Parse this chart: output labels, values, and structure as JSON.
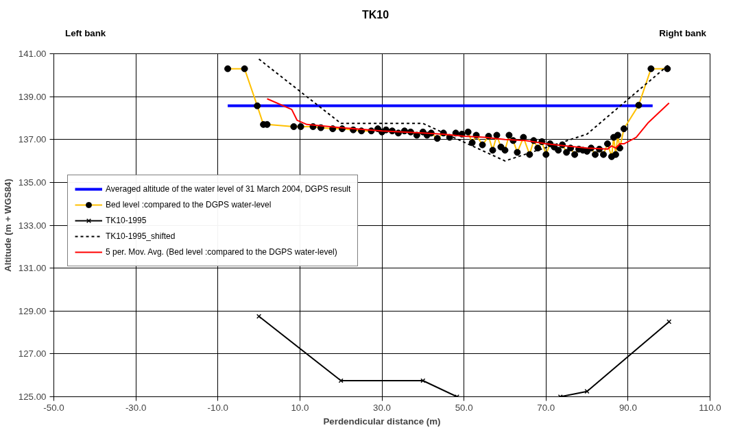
{
  "chart_data": {
    "type": "line",
    "title": "TK10",
    "xlabel": "Perdendicular distance (m)",
    "ylabel": "Altitude (m + WGS84)",
    "annotations": [
      "Left bank",
      "Right bank"
    ],
    "xlim": [
      -50,
      110
    ],
    "ylim": [
      125,
      141
    ],
    "xticks": [
      {
        "value": -50,
        "label": "-50.0"
      },
      {
        "value": -30,
        "label": "-30.0"
      },
      {
        "value": -10,
        "label": "-10.0"
      },
      {
        "value": 10,
        "label": "10.0"
      },
      {
        "value": 30,
        "label": "30.0"
      },
      {
        "value": 50,
        "label": "50.0"
      },
      {
        "value": 70,
        "label": "70.0"
      },
      {
        "value": 90,
        "label": "90.0"
      },
      {
        "value": 110,
        "label": "110.0"
      }
    ],
    "yticks": [
      {
        "value": 125,
        "label": "125.00"
      },
      {
        "value": 127,
        "label": "127.00"
      },
      {
        "value": 129,
        "label": "129.00"
      },
      {
        "value": 131,
        "label": "131.00"
      },
      {
        "value": 133,
        "label": "133.00"
      },
      {
        "value": 135,
        "label": "135.00"
      },
      {
        "value": 137,
        "label": "137.00"
      },
      {
        "value": 139,
        "label": "139.00"
      },
      {
        "value": 141,
        "label": "141.00"
      }
    ],
    "grid": true,
    "legend": "left",
    "series": [
      {
        "name": "Averaged altitude of the water level of 31 March 2004, DGPS result",
        "color": "#0000ff",
        "x": [
          -7.6,
          96.0
        ],
        "values": [
          138.57,
          138.57
        ]
      },
      {
        "name": "Bed level :compared to the DGPS water-level",
        "color": "#ffc000",
        "marker": "circle",
        "x": [
          -7.6,
          -3.5,
          -0.4,
          1.1,
          2.0,
          8.5,
          10.2,
          13.2,
          15.1,
          18,
          20.3,
          23,
          25,
          27.4,
          29,
          30,
          31,
          32.5,
          34,
          35.5,
          37,
          38.5,
          40,
          41,
          42,
          43.5,
          45,
          46.5,
          48,
          49.5,
          51,
          52,
          53,
          54.5,
          56,
          57,
          58,
          59,
          60,
          61,
          62,
          63,
          64.5,
          66,
          67,
          68,
          69,
          70,
          71,
          72,
          73,
          74,
          75,
          76,
          77,
          78,
          79,
          80,
          81,
          82,
          83,
          84,
          85,
          86,
          86.5,
          87,
          87.5,
          88,
          89.0,
          92.6,
          95.6,
          99.6
        ],
        "values": [
          140.3,
          140.3,
          138.57,
          137.7,
          137.7,
          137.6,
          137.6,
          137.6,
          137.55,
          137.5,
          137.5,
          137.45,
          137.4,
          137.4,
          137.5,
          137.35,
          137.45,
          137.4,
          137.3,
          137.4,
          137.35,
          137.2,
          137.35,
          137.2,
          137.3,
          137.05,
          137.3,
          137.1,
          137.3,
          137.25,
          137.35,
          136.85,
          137.2,
          136.75,
          137.15,
          136.5,
          137.2,
          136.65,
          136.5,
          137.2,
          136.95,
          136.4,
          137.1,
          136.3,
          136.95,
          136.6,
          136.9,
          136.3,
          136.8,
          136.65,
          136.5,
          136.75,
          136.4,
          136.6,
          136.3,
          136.55,
          136.5,
          136.45,
          136.6,
          136.3,
          136.55,
          136.3,
          136.8,
          136.2,
          137.1,
          136.3,
          137.2,
          136.6,
          137.5,
          138.6,
          140.3,
          140.3
        ]
      },
      {
        "name": "TK10-1995",
        "color": "#000000",
        "marker": "cross",
        "x": [
          0,
          20,
          40,
          48.3,
          null,
          73.5,
          80,
          100
        ],
        "values": [
          128.75,
          125.75,
          125.75,
          125.0,
          null,
          125.0,
          125.25,
          128.5
        ]
      },
      {
        "name": "TK10-1995_shifted",
        "color": "#000000",
        "line_style": "dashed",
        "x": [
          0,
          20,
          40,
          60,
          80,
          100
        ],
        "values": [
          140.75,
          137.75,
          137.75,
          136.0,
          137.25,
          140.5
        ]
      },
      {
        "name": "5 per. Mov. Avg. (Bed level :compared to the DGPS water-level)",
        "color": "#ff0000",
        "x": [
          2.0,
          8.0,
          9.3,
          11.7,
          20,
          30,
          40,
          45,
          50,
          55,
          60,
          65,
          70,
          75,
          80,
          85,
          86,
          87,
          88,
          89,
          92,
          95,
          100
        ],
        "values": [
          138.9,
          138.4,
          137.9,
          137.7,
          137.55,
          137.4,
          137.3,
          137.25,
          137.15,
          137.1,
          137.0,
          136.95,
          136.8,
          136.7,
          136.6,
          136.55,
          136.7,
          136.6,
          136.8,
          136.8,
          137.1,
          137.8,
          138.7
        ]
      }
    ]
  }
}
